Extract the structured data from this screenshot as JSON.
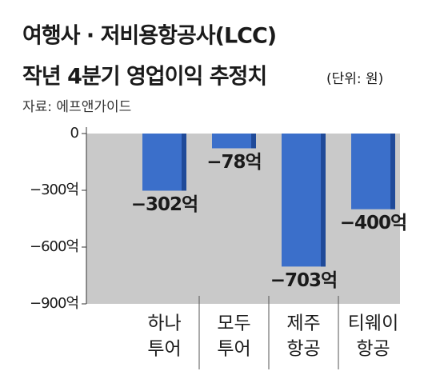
{
  "chart_data": {
    "type": "bar",
    "title": "여행사 · 저비용항공사(LCC)",
    "subtitle": "작년 4분기 영업이익 추정치",
    "unit": "(단위: 원)",
    "source": "자료: 에프앤가이드",
    "categories": [
      [
        "하나",
        "투어"
      ],
      [
        "모두",
        "투어"
      ],
      [
        "제주",
        "항공"
      ],
      [
        "티웨이",
        "항공"
      ]
    ],
    "values": [
      -302,
      -78,
      -703,
      -400
    ],
    "value_labels": [
      "−302억",
      "−78억",
      "−703억",
      "−400억"
    ],
    "color": "#3b6fca",
    "ylim": [
      -900,
      0
    ],
    "yticks": [
      0,
      {
        "value": -300,
        "label": "−300억"
      },
      {
        "value": -600,
        "label": "−600억"
      },
      {
        "value": -900,
        "label": "−900억"
      }
    ]
  }
}
